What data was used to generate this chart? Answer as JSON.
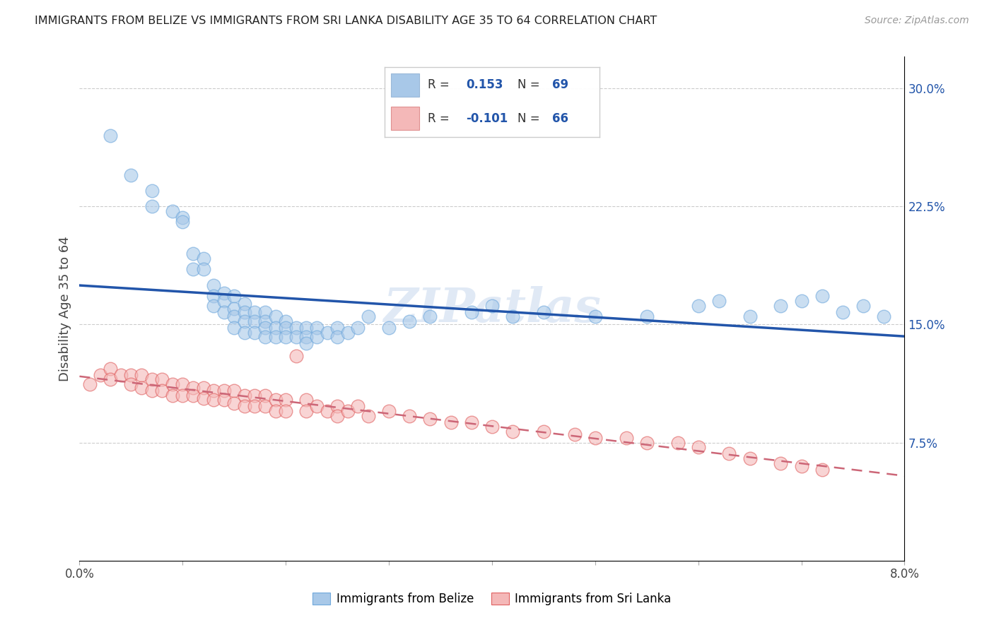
{
  "title": "IMMIGRANTS FROM BELIZE VS IMMIGRANTS FROM SRI LANKA DISABILITY AGE 35 TO 64 CORRELATION CHART",
  "source": "Source: ZipAtlas.com",
  "ylabel": "Disability Age 35 to 64",
  "xlim": [
    0.0,
    0.08
  ],
  "ylim": [
    0.0,
    0.32
  ],
  "yticks_right": [
    0.075,
    0.15,
    0.225,
    0.3
  ],
  "yticklabels_right": [
    "7.5%",
    "15.0%",
    "22.5%",
    "30.0%"
  ],
  "belize_color": "#a8c8e8",
  "belize_edge": "#6fa8dc",
  "srilanka_color": "#f4b8b8",
  "srilanka_edge": "#e06060",
  "trendline_blue": "#2255aa",
  "trendline_pink": "#cc6677",
  "belize_R": 0.153,
  "belize_N": 69,
  "srilanka_R": -0.101,
  "srilanka_N": 66,
  "legend_label_belize": "Immigrants from Belize",
  "legend_label_srilanka": "Immigrants from Sri Lanka",
  "watermark": "ZIPatlas",
  "belize_x": [
    0.003,
    0.005,
    0.007,
    0.007,
    0.009,
    0.01,
    0.01,
    0.011,
    0.011,
    0.012,
    0.012,
    0.013,
    0.013,
    0.013,
    0.014,
    0.014,
    0.014,
    0.015,
    0.015,
    0.015,
    0.015,
    0.016,
    0.016,
    0.016,
    0.016,
    0.017,
    0.017,
    0.017,
    0.018,
    0.018,
    0.018,
    0.018,
    0.019,
    0.019,
    0.019,
    0.02,
    0.02,
    0.02,
    0.021,
    0.021,
    0.022,
    0.022,
    0.022,
    0.023,
    0.023,
    0.024,
    0.025,
    0.025,
    0.026,
    0.027,
    0.028,
    0.03,
    0.032,
    0.034,
    0.038,
    0.04,
    0.042,
    0.045,
    0.05,
    0.055,
    0.06,
    0.062,
    0.065,
    0.068,
    0.07,
    0.072,
    0.074,
    0.076,
    0.078
  ],
  "belize_y": [
    0.27,
    0.245,
    0.235,
    0.225,
    0.222,
    0.218,
    0.215,
    0.195,
    0.185,
    0.192,
    0.185,
    0.175,
    0.168,
    0.162,
    0.17,
    0.165,
    0.158,
    0.168,
    0.16,
    0.155,
    0.148,
    0.163,
    0.158,
    0.152,
    0.145,
    0.158,
    0.152,
    0.145,
    0.158,
    0.152,
    0.148,
    0.142,
    0.155,
    0.148,
    0.142,
    0.152,
    0.148,
    0.142,
    0.148,
    0.142,
    0.148,
    0.142,
    0.138,
    0.148,
    0.142,
    0.145,
    0.148,
    0.142,
    0.145,
    0.148,
    0.155,
    0.148,
    0.152,
    0.155,
    0.158,
    0.162,
    0.155,
    0.158,
    0.155,
    0.155,
    0.162,
    0.165,
    0.155,
    0.162,
    0.165,
    0.168,
    0.158,
    0.162,
    0.155
  ],
  "srilanka_x": [
    0.001,
    0.002,
    0.003,
    0.003,
    0.004,
    0.005,
    0.005,
    0.006,
    0.006,
    0.007,
    0.007,
    0.008,
    0.008,
    0.009,
    0.009,
    0.01,
    0.01,
    0.011,
    0.011,
    0.012,
    0.012,
    0.013,
    0.013,
    0.014,
    0.014,
    0.015,
    0.015,
    0.016,
    0.016,
    0.017,
    0.017,
    0.018,
    0.018,
    0.019,
    0.019,
    0.02,
    0.02,
    0.021,
    0.022,
    0.022,
    0.023,
    0.024,
    0.025,
    0.025,
    0.026,
    0.027,
    0.028,
    0.03,
    0.032,
    0.034,
    0.036,
    0.038,
    0.04,
    0.042,
    0.045,
    0.048,
    0.05,
    0.053,
    0.055,
    0.058,
    0.06,
    0.063,
    0.065,
    0.068,
    0.07,
    0.072
  ],
  "srilanka_y": [
    0.112,
    0.118,
    0.122,
    0.115,
    0.118,
    0.118,
    0.112,
    0.118,
    0.11,
    0.115,
    0.108,
    0.115,
    0.108,
    0.112,
    0.105,
    0.112,
    0.105,
    0.11,
    0.105,
    0.11,
    0.103,
    0.108,
    0.102,
    0.108,
    0.102,
    0.108,
    0.1,
    0.105,
    0.098,
    0.105,
    0.098,
    0.105,
    0.098,
    0.102,
    0.095,
    0.102,
    0.095,
    0.13,
    0.102,
    0.095,
    0.098,
    0.095,
    0.098,
    0.092,
    0.095,
    0.098,
    0.092,
    0.095,
    0.092,
    0.09,
    0.088,
    0.088,
    0.085,
    0.082,
    0.082,
    0.08,
    0.078,
    0.078,
    0.075,
    0.075,
    0.072,
    0.068,
    0.065,
    0.062,
    0.06,
    0.058
  ]
}
